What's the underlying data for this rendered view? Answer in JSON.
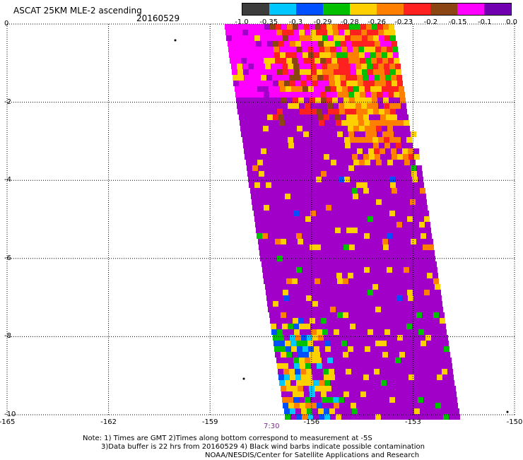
{
  "header": {
    "title": "ASCAT 25KM MLE-2 ascending",
    "date": "20160529"
  },
  "legend": {
    "colors": [
      "#3c3c3c",
      "#00c8ff",
      "#0050ff",
      "#00c000",
      "#ffd000",
      "#ff8000",
      "#ff2020",
      "#8b4513",
      "#ff00ff",
      "#7000b0"
    ],
    "labels": [
      "-1.0",
      "-0.35",
      "-0.3",
      "-0.29",
      "-0.28",
      "-0.26",
      "-0.23",
      "-0.2",
      "-0.15",
      "-0.1",
      "0.0"
    ]
  },
  "axes": {
    "y_ticks": [
      "0",
      "-2",
      "-4",
      "-6",
      "-8",
      "-10"
    ],
    "x_ticks": [
      "-165",
      "-162",
      "-159",
      "-156",
      "-153",
      "-150"
    ],
    "x_range": [
      -165,
      -150
    ],
    "y_range": [
      0,
      -10
    ],
    "grid": "dotted"
  },
  "swath": {
    "base_color": "#a000c8",
    "description_colors": {
      "magenta": "#ff00ff",
      "purple": "#a000c8",
      "brown": "#8b4513",
      "red": "#ff2020",
      "orange": "#ff8000",
      "yellow": "#ffd000",
      "green": "#00c000",
      "blue": "#0050ff",
      "cyan": "#00c8ff",
      "dark": "#3c3c3c"
    }
  },
  "time_label": "7:30",
  "notes": {
    "line1": "Note: 1) Times are GMT 2)Times along bottom correspond to measurement at -5S",
    "line2": "3)Data buffer is 22 hrs from 20160529 4) Black wind barbs indicate possible contamination",
    "line3": "NOAA/NESDIS/Center for Satellite Applications and Research"
  }
}
